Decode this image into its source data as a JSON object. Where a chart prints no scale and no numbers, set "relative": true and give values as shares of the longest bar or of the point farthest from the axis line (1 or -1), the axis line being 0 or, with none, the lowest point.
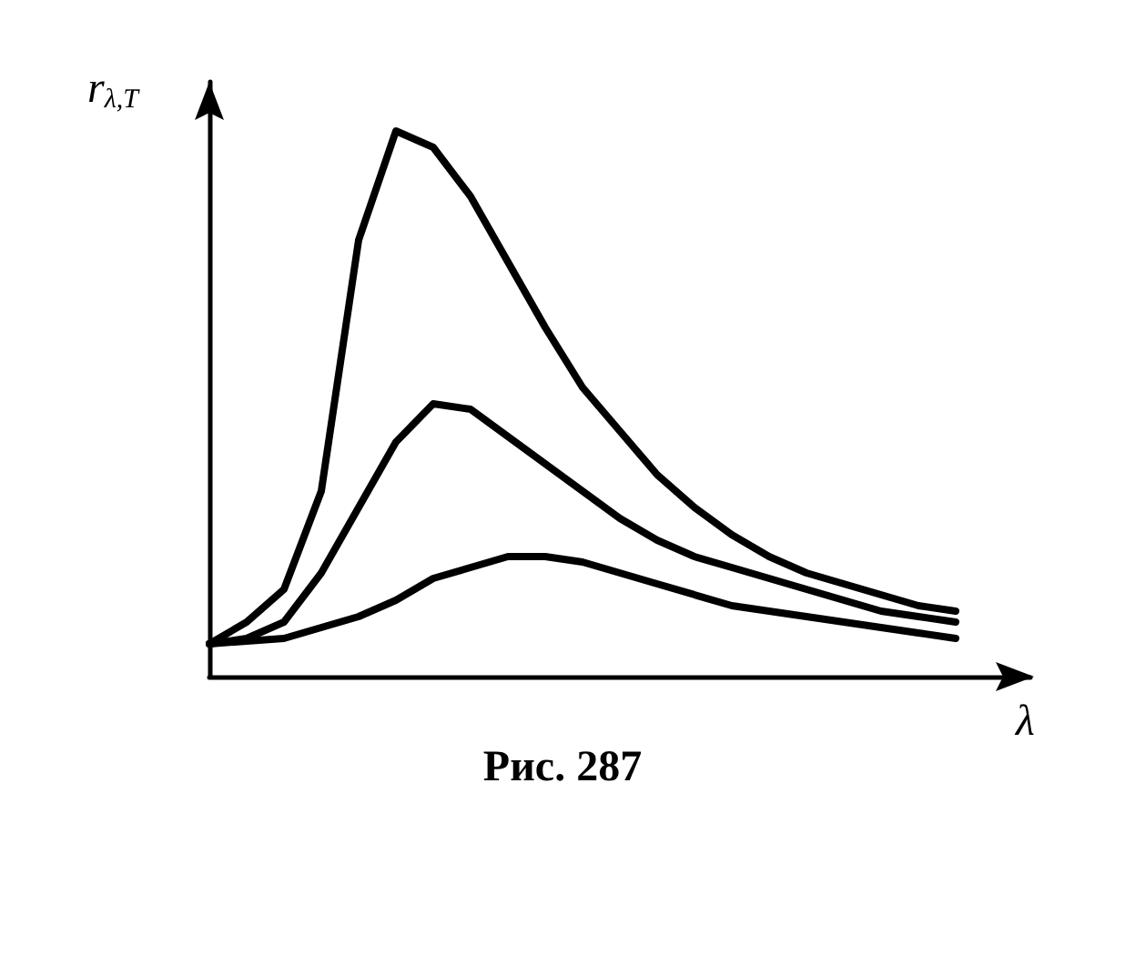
{
  "chart_data": {
    "type": "line",
    "relative": true,
    "xlabel": "λ",
    "ylabel": "r$_{λ,T}$",
    "grid": false,
    "marker": "none",
    "line_style": "solid",
    "categories": [
      null,
      null,
      null,
      null,
      null,
      null,
      null,
      null,
      null,
      null,
      null,
      null,
      null,
      null,
      null,
      null,
      null,
      null,
      null,
      null,
      null,
      null,
      null
    ],
    "series": [
      {
        "color": "#000000",
        "values": [
          0.06,
          0.1,
          0.16,
          0.34,
          0.8,
          1.0,
          0.97,
          0.88,
          0.76,
          0.64,
          0.53,
          0.45,
          0.37,
          0.31,
          0.26,
          0.22,
          0.19,
          0.17,
          0.15,
          0.13,
          0.12,
          null,
          null
        ]
      },
      {
        "color": "#000000",
        "values": [
          0.06,
          0.07,
          0.1,
          0.19,
          0.31,
          0.43,
          0.5,
          0.49,
          0.44,
          0.39,
          0.34,
          0.29,
          0.25,
          0.22,
          0.2,
          0.18,
          0.16,
          0.14,
          0.12,
          0.11,
          0.1,
          null,
          null
        ]
      },
      {
        "color": "#000000",
        "values": [
          0.06,
          0.065,
          0.07,
          0.09,
          0.11,
          0.14,
          0.18,
          0.2,
          0.22,
          0.22,
          0.21,
          0.19,
          0.17,
          0.15,
          0.13,
          0.12,
          0.11,
          0.1,
          0.09,
          0.08,
          0.07,
          null,
          null
        ]
      }
    ],
    "annotations": [
      "Рис. 287"
    ]
  }
}
